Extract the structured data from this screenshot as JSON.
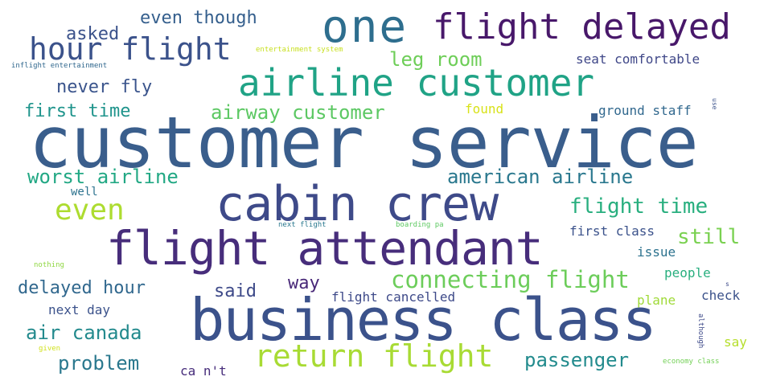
{
  "words": [
    {
      "id": "customer-service",
      "text": "customer service",
      "color": "#3a5e8c"
    },
    {
      "id": "business-class",
      "text": "business class",
      "color": "#3b528b"
    },
    {
      "id": "cabin-crew",
      "text": "cabin crew",
      "color": "#3e4a89"
    },
    {
      "id": "flight-attendant",
      "text": "flight attendant",
      "color": "#472d7b"
    },
    {
      "id": "airline-customer",
      "text": "airline customer",
      "color": "#20a386"
    },
    {
      "id": "one",
      "text": "one",
      "color": "#2e6e8e"
    },
    {
      "id": "flight-delayed",
      "text": "flight delayed",
      "color": "#48186a"
    },
    {
      "id": "hour-flight",
      "text": "hour flight",
      "color": "#3b528b"
    },
    {
      "id": "return-flight",
      "text": "return flight",
      "color": "#a8db34"
    },
    {
      "id": "even",
      "text": "even",
      "color": "#addc30"
    },
    {
      "id": "connecting-flight",
      "text": "connecting flight",
      "color": "#6ccd5a"
    },
    {
      "id": "even-though",
      "text": "even though",
      "color": "#355f8d"
    },
    {
      "id": "asked",
      "text": "asked",
      "color": "#3b528b"
    },
    {
      "id": "never-fly",
      "text": "never fly",
      "color": "#3a548c"
    },
    {
      "id": "first-time",
      "text": "first time",
      "color": "#1f948c"
    },
    {
      "id": "airway-customer",
      "text": "airway customer",
      "color": "#5cc863"
    },
    {
      "id": "leg-room",
      "text": "leg room",
      "color": "#6ece58"
    },
    {
      "id": "found",
      "text": "found",
      "color": "#d8e219"
    },
    {
      "id": "seat-comfortable",
      "text": "seat comfortable",
      "color": "#3f4788"
    },
    {
      "id": "ground-staff",
      "text": "ground staff",
      "color": "#31688e"
    },
    {
      "id": "worst-airline",
      "text": "worst airline",
      "color": "#22a884"
    },
    {
      "id": "american-airline",
      "text": "american airline",
      "color": "#2a788e"
    },
    {
      "id": "flight-time",
      "text": "flight time",
      "color": "#29af7f"
    },
    {
      "id": "still",
      "text": "still",
      "color": "#7ad151"
    },
    {
      "id": "first-class",
      "text": "first class",
      "color": "#3b528b"
    },
    {
      "id": "issue",
      "text": "issue",
      "color": "#2c728e"
    },
    {
      "id": "people",
      "text": "people",
      "color": "#29af7f"
    },
    {
      "id": "check",
      "text": "check",
      "color": "#3b528b"
    },
    {
      "id": "plane",
      "text": "plane",
      "color": "#a0da39"
    },
    {
      "id": "say",
      "text": "say",
      "color": "#b5de2b"
    },
    {
      "id": "delayed-hour",
      "text": "delayed hour",
      "color": "#31688e"
    },
    {
      "id": "said",
      "text": "said",
      "color": "#3e4a89"
    },
    {
      "id": "way",
      "text": "way",
      "color": "#482878"
    },
    {
      "id": "next-day",
      "text": "next day",
      "color": "#3b528b"
    },
    {
      "id": "flight-cancelled",
      "text": "flight cancelled",
      "color": "#3e4a89"
    },
    {
      "id": "air-canada",
      "text": "air canada",
      "color": "#238a8d"
    },
    {
      "id": "problem",
      "text": "problem",
      "color": "#2a788e"
    },
    {
      "id": "passenger",
      "text": "passenger",
      "color": "#228b8d"
    },
    {
      "id": "ca-nt",
      "text": "ca n't",
      "color": "#472d7b"
    },
    {
      "id": "well",
      "text": "well",
      "color": "#2c728e"
    },
    {
      "id": "entertainment-system",
      "text": "entertainment system",
      "color": "#c8e020"
    },
    {
      "id": "inflight-entertainment",
      "text": "inflight entertainment",
      "color": "#31688e"
    },
    {
      "id": "next-flight",
      "text": "next flight",
      "color": "#2a788e"
    },
    {
      "id": "boarding-pa",
      "text": "boarding pa",
      "color": "#5ec962"
    },
    {
      "id": "nothing",
      "text": "nothing",
      "color": "#90d743"
    },
    {
      "id": "given",
      "text": "given",
      "color": "#d0e11c"
    },
    {
      "id": "economy-class",
      "text": "economy class",
      "color": "#73d056"
    },
    {
      "id": "although",
      "text": "although",
      "color": "#3e4a89"
    },
    {
      "id": "use",
      "text": "use",
      "color": "#3b528b"
    },
    {
      "id": "small-s",
      "text": "s",
      "color": "#3e4a89"
    }
  ]
}
